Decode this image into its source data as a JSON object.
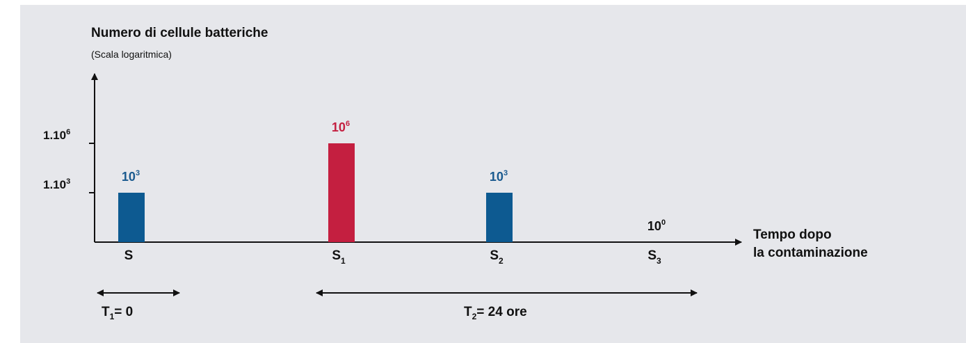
{
  "chart_data": {
    "type": "bar",
    "y_scale": "log",
    "title": "Numero di cellule batteriche",
    "subtitle": "(Scala logaritmica)",
    "xlabel_line1": "Tempo dopo",
    "xlabel_line2": "la contaminazione",
    "y_ticks": [
      {
        "mant": "1.10",
        "exp": "3",
        "value": 1000
      },
      {
        "mant": "1.10",
        "exp": "6",
        "value": 1000000
      }
    ],
    "categories": [
      {
        "base": "S",
        "sub": ""
      },
      {
        "base": "S",
        "sub": "1"
      },
      {
        "base": "S",
        "sub": "2"
      },
      {
        "base": "S",
        "sub": "3"
      }
    ],
    "values": [
      1000,
      1000000,
      1000,
      1
    ],
    "value_labels": [
      {
        "base": "10",
        "exp": "3"
      },
      {
        "base": "10",
        "exp": "6"
      },
      {
        "base": "10",
        "exp": "3"
      },
      {
        "base": "10",
        "exp": "0"
      }
    ],
    "bar_colors": [
      "#0d5a91",
      "#c41f40",
      "#0d5a91",
      "#0d5a91"
    ],
    "label_colors": [
      "#1a5a8f",
      "#c41f40",
      "#1a5a8f",
      "#111111"
    ],
    "periods": [
      {
        "base": "T",
        "sub": "1",
        "rest": "= 0"
      },
      {
        "base": "T",
        "sub": "2",
        "rest": "= 24 ore"
      }
    ],
    "colors": {
      "background": "#e6e7eb",
      "axis": "#111111"
    }
  }
}
